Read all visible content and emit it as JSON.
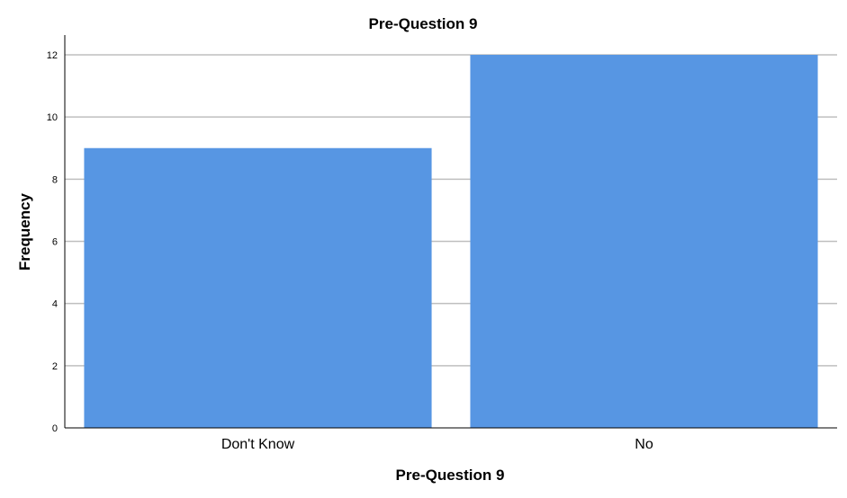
{
  "chart_data": {
    "type": "bar",
    "title": "Pre-Question 9",
    "xlabel": "Pre-Question 9",
    "ylabel": "Frequency",
    "categories": [
      "Don't Know",
      "No"
    ],
    "values": [
      9,
      12
    ],
    "ylim": [
      0,
      12
    ],
    "yticks": [
      0,
      2,
      4,
      6,
      8,
      10,
      12
    ],
    "grid": true,
    "legend": "none",
    "bar_color": "#5796E3",
    "grid_color": "#BFBFBF",
    "axis_color": "#000000"
  }
}
